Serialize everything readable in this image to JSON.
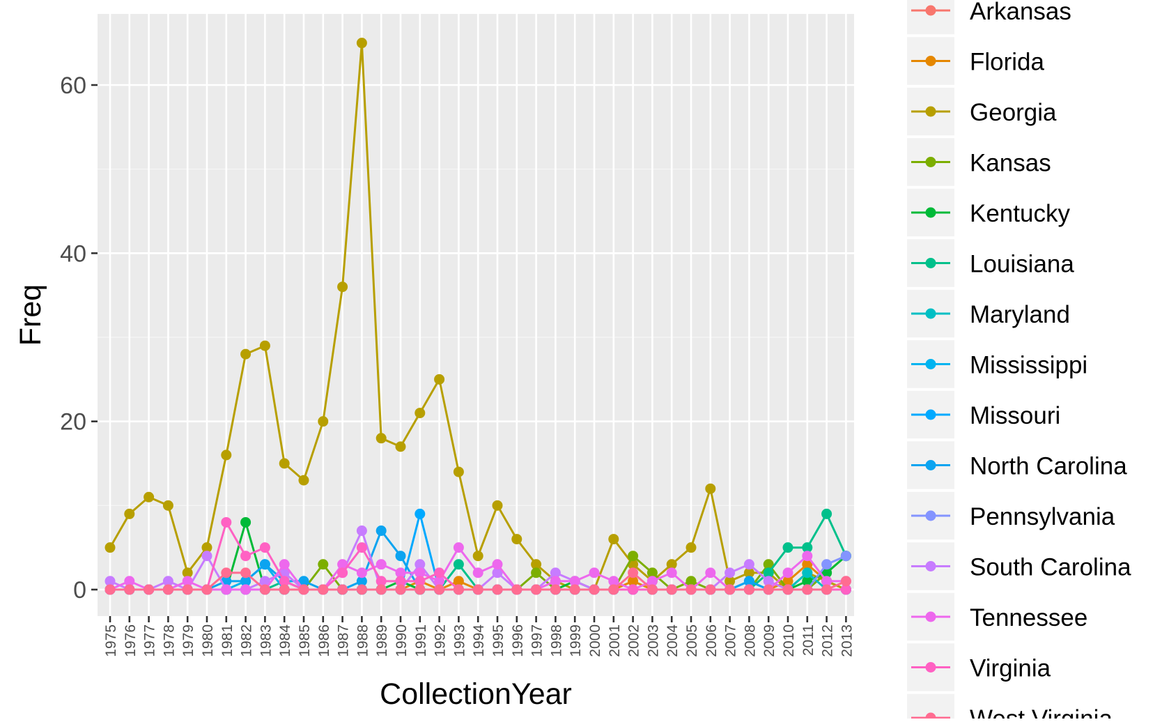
{
  "chart_data": {
    "type": "line",
    "xlabel": "CollectionYear",
    "ylabel": "Freq",
    "ylim": [
      -5,
      68
    ],
    "y_ticks": [
      0,
      20,
      40,
      60
    ],
    "grid": true,
    "legend_position": "right",
    "x": [
      "1975",
      "1976",
      "1977",
      "1978",
      "1979",
      "1980",
      "1981",
      "1982",
      "1983",
      "1984",
      "1985",
      "1986",
      "1987",
      "1988",
      "1989",
      "1990",
      "1991",
      "1992",
      "1993",
      "1994",
      "1995",
      "1996",
      "1997",
      "1998",
      "1999",
      "2000",
      "2001",
      "2002",
      "2003",
      "2004",
      "2005",
      "2006",
      "2007",
      "2008",
      "2009",
      "2010",
      "2011",
      "2012",
      "2013"
    ],
    "series": [
      {
        "name": "Arkansas",
        "color": "#F8766D",
        "values": [
          0,
          0,
          0,
          0,
          0,
          0,
          0,
          0,
          0,
          0,
          0,
          0,
          0,
          0,
          0,
          0,
          0,
          0,
          0,
          0,
          0,
          0,
          0,
          0,
          0,
          0,
          0,
          0,
          0,
          0,
          0,
          0,
          0,
          0,
          0,
          0,
          0,
          0,
          0
        ]
      },
      {
        "name": "Florida",
        "color": "#E58700",
        "values": [
          0,
          0,
          0,
          0,
          0,
          0,
          0,
          0,
          0,
          0,
          0,
          0,
          0,
          0,
          0,
          0,
          1,
          0,
          1,
          0,
          0,
          0,
          0,
          0,
          0,
          0,
          0,
          1,
          0,
          0,
          0,
          0,
          0,
          0,
          0,
          1,
          3,
          1,
          0
        ]
      },
      {
        "name": "Georgia",
        "color": "#B79F00",
        "values": [
          5,
          9,
          11,
          10,
          2,
          5,
          16,
          28,
          29,
          15,
          13,
          20,
          36,
          65,
          18,
          17,
          21,
          25,
          14,
          4,
          10,
          6,
          3,
          1,
          0,
          0,
          6,
          3,
          1,
          3,
          5,
          12,
          1,
          2,
          2,
          0,
          2,
          1,
          0
        ]
      },
      {
        "name": "Kansas",
        "color": "#7CAE00",
        "values": [
          0,
          0,
          0,
          0,
          0,
          0,
          0,
          0,
          0,
          0,
          0,
          3,
          0,
          0,
          0,
          0,
          0,
          0,
          0,
          0,
          0,
          0,
          2,
          0,
          0,
          0,
          0,
          4,
          2,
          0,
          1,
          0,
          0,
          0,
          3,
          0,
          0,
          2,
          4
        ]
      },
      {
        "name": "Kentucky",
        "color": "#00BA38",
        "values": [
          0,
          0,
          0,
          0,
          0,
          0,
          0,
          8,
          0,
          0,
          0,
          0,
          0,
          0,
          0,
          1,
          0,
          0,
          0,
          0,
          0,
          0,
          0,
          0,
          1,
          0,
          0,
          0,
          0,
          0,
          0,
          0,
          0,
          0,
          0,
          0,
          1,
          2,
          4
        ]
      },
      {
        "name": "Louisiana",
        "color": "#00C08B",
        "values": [
          0,
          0,
          0,
          0,
          0,
          0,
          0,
          0,
          0,
          1,
          0,
          0,
          0,
          0,
          0,
          0,
          0,
          0,
          3,
          0,
          0,
          0,
          0,
          0,
          0,
          0,
          0,
          0,
          0,
          0,
          0,
          0,
          0,
          0,
          2,
          5,
          5,
          9,
          4
        ]
      },
      {
        "name": "Maryland",
        "color": "#00BFC4",
        "values": [
          0,
          0,
          0,
          0,
          0,
          0,
          0,
          0,
          0,
          0,
          0,
          0,
          0,
          0,
          0,
          0,
          0,
          0,
          0,
          0,
          0,
          0,
          0,
          0,
          0,
          0,
          0,
          0,
          0,
          0,
          0,
          0,
          0,
          0,
          0,
          0,
          2,
          0,
          0
        ]
      },
      {
        "name": "Mississippi",
        "color": "#00B4F0",
        "values": [
          0,
          0,
          0,
          0,
          0,
          0,
          0,
          1,
          3,
          0,
          0,
          0,
          0,
          0,
          0,
          0,
          0,
          0,
          0,
          0,
          0,
          0,
          0,
          0,
          0,
          0,
          0,
          0,
          0,
          0,
          0,
          0,
          0,
          0,
          0,
          0,
          0,
          0,
          0
        ]
      },
      {
        "name": "Missouri",
        "color": "#00A9FF",
        "values": [
          0,
          0,
          0,
          0,
          0,
          0,
          0,
          0,
          0,
          0,
          0,
          0,
          0,
          0,
          0,
          0,
          9,
          0,
          0,
          0,
          0,
          0,
          0,
          0,
          0,
          0,
          0,
          0,
          0,
          0,
          0,
          0,
          0,
          1,
          0,
          0,
          0,
          0,
          0
        ]
      },
      {
        "name": "North Carolina",
        "color": "#0CA4F0",
        "values": [
          0,
          0,
          0,
          0,
          0,
          0,
          1,
          1,
          3,
          1,
          1,
          0,
          0,
          1,
          7,
          4,
          0,
          0,
          0,
          0,
          0,
          0,
          0,
          0,
          0,
          0,
          0,
          0,
          0,
          0,
          0,
          0,
          0,
          1,
          0,
          0,
          0,
          0,
          0
        ]
      },
      {
        "name": "Pennsylvania",
        "color": "#8494FF",
        "values": [
          0,
          0,
          0,
          0,
          0,
          0,
          0,
          0,
          0,
          0,
          0,
          0,
          0,
          0,
          0,
          0,
          0,
          0,
          0,
          0,
          0,
          0,
          0,
          0,
          0,
          0,
          0,
          0,
          0,
          0,
          0,
          0,
          0,
          0,
          0,
          0,
          0,
          3,
          4
        ]
      },
      {
        "name": "South Carolina",
        "color": "#C77CFF",
        "values": [
          1,
          0,
          0,
          1,
          0,
          4,
          0,
          0,
          1,
          2,
          0,
          0,
          2,
          7,
          0,
          0,
          3,
          0,
          0,
          0,
          2,
          0,
          0,
          2,
          1,
          0,
          0,
          0,
          0,
          0,
          0,
          0,
          2,
          3,
          1,
          0,
          0,
          0,
          0
        ]
      },
      {
        "name": "Tennessee",
        "color": "#ED68ED",
        "values": [
          0,
          1,
          0,
          0,
          1,
          0,
          0,
          0,
          0,
          3,
          0,
          0,
          3,
          2,
          3,
          2,
          2,
          1,
          5,
          2,
          3,
          0,
          0,
          1,
          1,
          2,
          1,
          0,
          1,
          2,
          0,
          2,
          0,
          0,
          0,
          2,
          4,
          1,
          1
        ]
      },
      {
        "name": "Virginia",
        "color": "#FF61C3",
        "values": [
          0,
          0,
          0,
          0,
          0,
          0,
          8,
          4,
          5,
          1,
          0,
          0,
          2,
          5,
          1,
          1,
          1,
          2,
          0,
          0,
          0,
          0,
          0,
          0,
          0,
          0,
          0,
          0,
          0,
          0,
          0,
          0,
          0,
          0,
          0,
          0,
          0,
          0,
          0
        ]
      },
      {
        "name": "West Virginia",
        "color": "#FF6C91",
        "values": [
          0,
          0,
          0,
          0,
          0,
          0,
          2,
          2,
          0,
          0,
          0,
          0,
          0,
          0,
          0,
          0,
          0,
          0,
          0,
          0,
          0,
          0,
          0,
          0,
          0,
          0,
          0,
          2,
          0,
          0,
          0,
          0,
          0,
          0,
          0,
          0,
          0,
          0,
          1
        ]
      }
    ]
  }
}
